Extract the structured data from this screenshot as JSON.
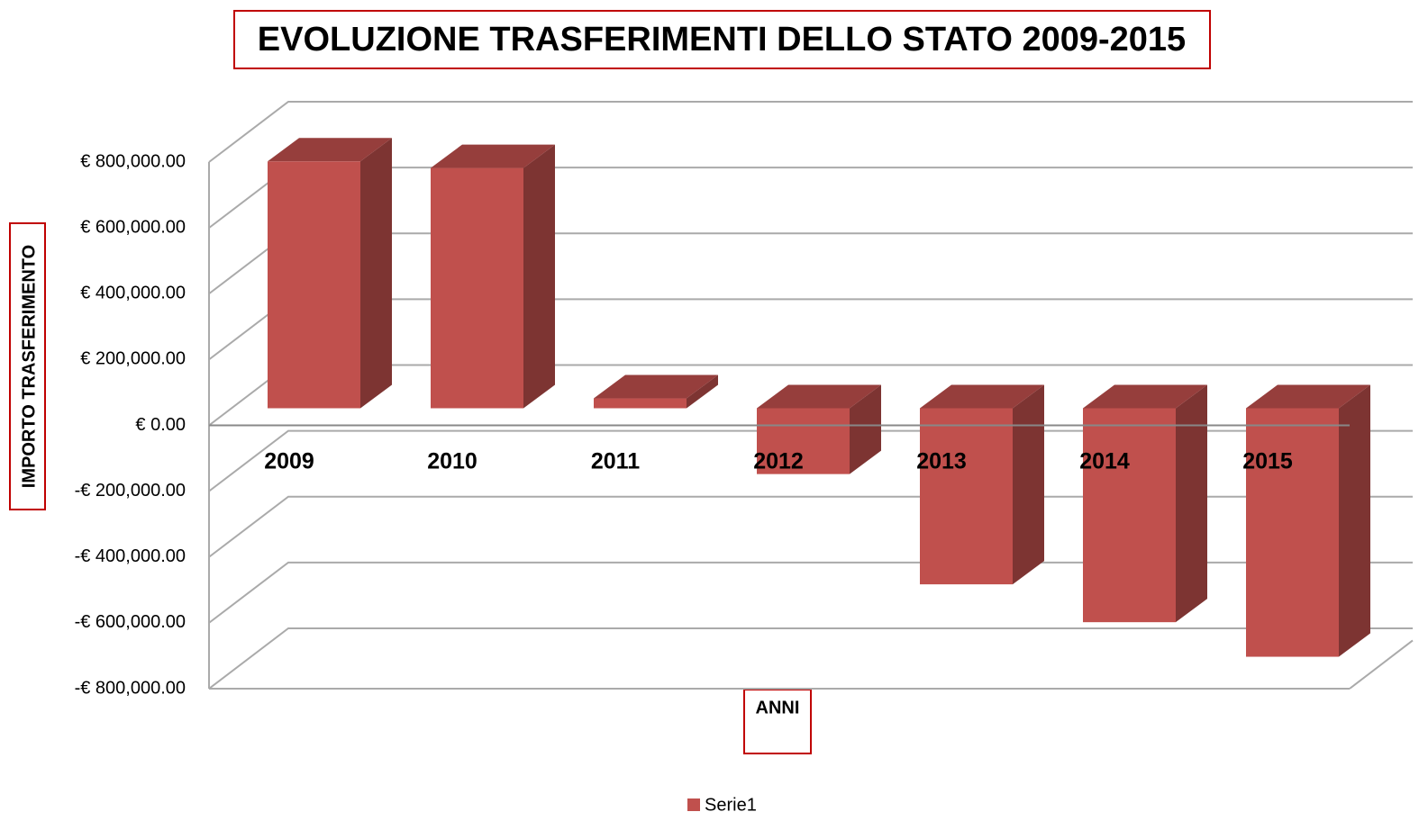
{
  "chart_data": {
    "type": "bar3d",
    "title": "EVOLUZIONE TRASFERIMENTI DELLO STATO 2009-2015",
    "y_axis_label": "IMPORTO TRASFERIMENTO",
    "x_axis_label": "ANNI",
    "categories": [
      "2009",
      "2010",
      "2011",
      "2012",
      "2013",
      "2014",
      "2015"
    ],
    "series": [
      {
        "name": "Serie1",
        "color": "#c0504d",
        "values": [
          750000,
          730000,
          30000,
          -200000,
          -535000,
          -650000,
          -755000
        ]
      }
    ],
    "ylim": [
      -800000,
      800000
    ],
    "yticks": [
      {
        "value": -800000,
        "label": "-€ 800,000.00"
      },
      {
        "value": -600000,
        "label": "-€ 600,000.00"
      },
      {
        "value": -400000,
        "label": "-€ 400,000.00"
      },
      {
        "value": -200000,
        "label": "-€ 200,000.00"
      },
      {
        "value": 0,
        "label": "€ 0.00"
      },
      {
        "value": 200000,
        "label": "€ 200,000.00"
      },
      {
        "value": 400000,
        "label": "€ 400,000.00"
      },
      {
        "value": 600000,
        "label": "€ 600,000.00"
      },
      {
        "value": 800000,
        "label": "€ 800,000.00"
      }
    ],
    "grid": true,
    "legend": "bottom"
  }
}
